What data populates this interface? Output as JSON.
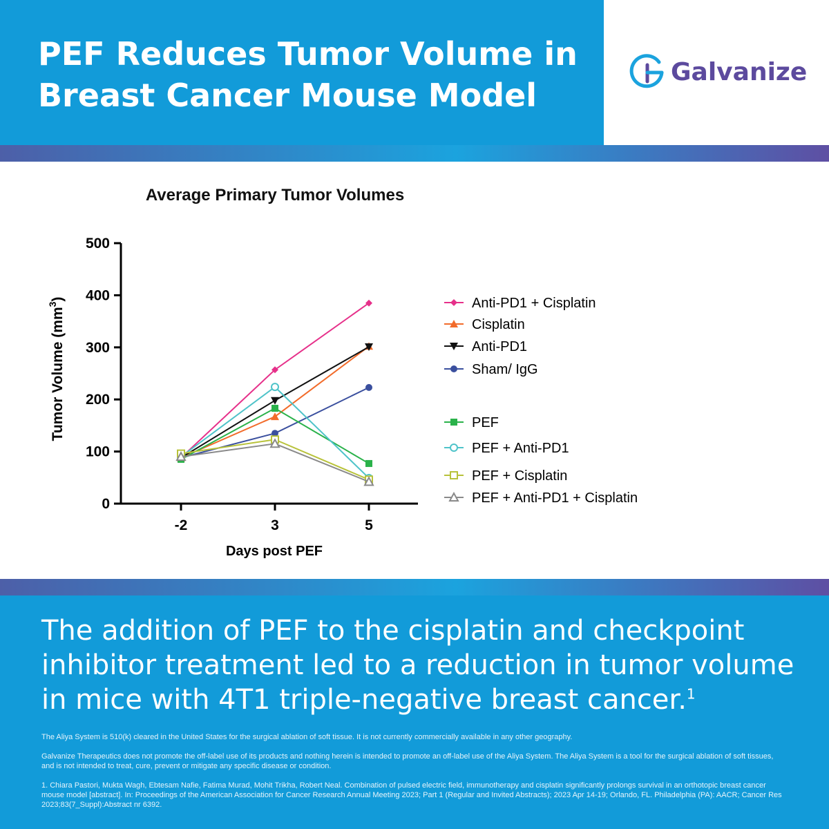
{
  "header": {
    "headline_line1": "PEF Reduces Tumor Volume in",
    "headline_line2": "Breast Cancer Mouse Model",
    "logo_text": "Galvanize"
  },
  "colors": {
    "brand_blue": "#129bd9",
    "brand_purple": "#5c4a9e"
  },
  "chart_data": {
    "type": "line",
    "title": "Average Primary Tumor Volumes",
    "xlabel": "Days post PEF",
    "ylabel": "Tumor Volume (mm",
    "ylabel_sup": "3",
    "ylabel_close": ")",
    "x": [
      "-2",
      "3",
      "5"
    ],
    "ylim": [
      0,
      500
    ],
    "yticks": [
      "0",
      "100",
      "200",
      "300",
      "400",
      "500"
    ],
    "legend_position": "right",
    "series": [
      {
        "name": "Anti-PD1 + Cisplatin",
        "values": [
          88,
          257,
          385
        ],
        "color": "#e6308a",
        "marker": "diamond"
      },
      {
        "name": "Cisplatin",
        "values": [
          88,
          167,
          302
        ],
        "color": "#f26b2a",
        "marker": "triangle-up"
      },
      {
        "name": "Anti-PD1",
        "values": [
          88,
          198,
          301
        ],
        "color": "#111111",
        "marker": "triangle-down"
      },
      {
        "name": "Sham/ IgG",
        "values": [
          88,
          135,
          223
        ],
        "color": "#3a4f9e",
        "marker": "circle"
      },
      {
        "name": "PEF",
        "values": [
          85,
          183,
          77
        ],
        "color": "#2ab24a",
        "marker": "square"
      },
      {
        "name": "PEF + Anti-PD1",
        "values": [
          90,
          224,
          49
        ],
        "color": "#4ec3c9",
        "marker": "circle-open"
      },
      {
        "name": "PEF + Cisplatin",
        "values": [
          96,
          123,
          46
        ],
        "color": "#b8c23a",
        "marker": "square-open"
      },
      {
        "name": "PEF + Anti-PD1 + Cisplatin",
        "values": [
          90,
          115,
          42
        ],
        "color": "#8a8a8a",
        "marker": "triangle-open"
      }
    ]
  },
  "footer": {
    "conclusion": "The addition of PEF to the cisplatin and checkpoint inhibitor treatment led to a reduction in tumor volume in mice with 4T1 triple-negative breast cancer.",
    "conclusion_ref": "1",
    "fine1": "The Aliya System is 510(k) cleared in the United States for the surgical ablation of soft tissue. It is not currently commercially available in any other geography.",
    "fine2": "Galvanize Therapeutics does not promote the off-label use of its products and nothing herein is intended to promote an off-label use of the Aliya System. The Aliya System is a tool for the surgical ablation of soft tissues, and is not intended to treat, cure, prevent or mitigate any specific disease or condition.",
    "fine3": "1. Chiara Pastori, Mukta Wagh, Ebtesam Nafie, Fatima Murad, Mohit Trikha, Robert Neal. Combination of pulsed electric field, immunotherapy and cisplatin significantly prolongs survival in an orthotopic breast cancer mouse model [abstract]. In: Proceedings of the American Association for Cancer Research Annual Meeting 2023; Part 1 (Regular and Invited Abstracts); 2023 Apr 14-19; Orlando, FL. Philadelphia (PA): AACR; Cancer Res 2023;83(7_Suppl):Abstract nr 6392."
  }
}
